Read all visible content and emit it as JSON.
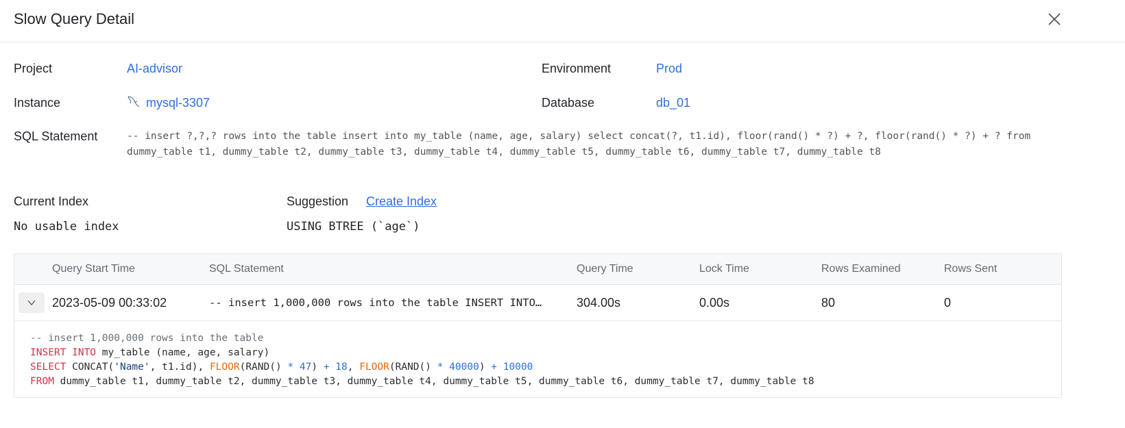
{
  "header": {
    "title": "Slow Query Detail",
    "close_icon": "close-icon"
  },
  "details": {
    "project_label": "Project",
    "project_value": "AI-advisor",
    "environment_label": "Environment",
    "environment_value": "Prod",
    "instance_label": "Instance",
    "instance_value": "mysql-3307",
    "instance_icon": "mysql-dolphin-icon",
    "database_label": "Database",
    "database_value": "db_01",
    "sql_label": "SQL Statement",
    "sql_value": "-- insert ?,?,? rows into the table insert into my_table (name, age, salary) select concat(?, t1.id), floor(rand() * ?) + ?, floor(rand() * ?) + ? from dummy_table t1, dummy_table t2, dummy_table t3, dummy_table t4, dummy_table t5, dummy_table t6, dummy_table t7, dummy_table t8",
    "current_index_label": "Current Index",
    "current_index_value": "No usable index",
    "suggestion_label": "Suggestion",
    "suggestion_link": "Create Index",
    "suggestion_value": "USING BTREE (`age`)"
  },
  "table": {
    "columns": [
      "Query Start Time",
      "SQL Statement",
      "Query Time",
      "Lock Time",
      "Rows Examined",
      "Rows Sent"
    ],
    "rows": [
      {
        "start_time": "2023-05-09 00:33:02",
        "sql": "-- insert 1,000,000 rows into the table INSERT INTO…",
        "query_time": "304.00s",
        "lock_time": "0.00s",
        "rows_examined": "80",
        "rows_sent": "0",
        "expanded": true
      }
    ],
    "expanded_code": [
      [
        [
          "comment",
          "-- insert 1,000,000 rows into the table"
        ]
      ],
      [
        [
          "kw",
          "INSERT INTO"
        ],
        [
          "plain",
          " my_table (name, age, salary)"
        ]
      ],
      [
        [
          "kw",
          "SELECT"
        ],
        [
          "plain",
          " CONCAT("
        ],
        [
          "str",
          "'Name'"
        ],
        [
          "plain",
          ", t1.id), "
        ],
        [
          "fn",
          "FLOOR"
        ],
        [
          "plain",
          "(RAND() "
        ],
        [
          "num",
          "* 47"
        ],
        [
          "plain",
          ") "
        ],
        [
          "num",
          "+ 18"
        ],
        [
          "plain",
          ", "
        ],
        [
          "fn",
          "FLOOR"
        ],
        [
          "plain",
          "(RAND() "
        ],
        [
          "num",
          "* 40000"
        ],
        [
          "plain",
          ") "
        ],
        [
          "num",
          "+ 10000"
        ]
      ],
      [
        [
          "kw",
          "FROM"
        ],
        [
          "plain",
          " dummy_table t1, dummy_table t2, dummy_table t3, dummy_table t4, dummy_table t5, dummy_table t6, dummy_table t7, dummy_table t8"
        ]
      ]
    ]
  }
}
